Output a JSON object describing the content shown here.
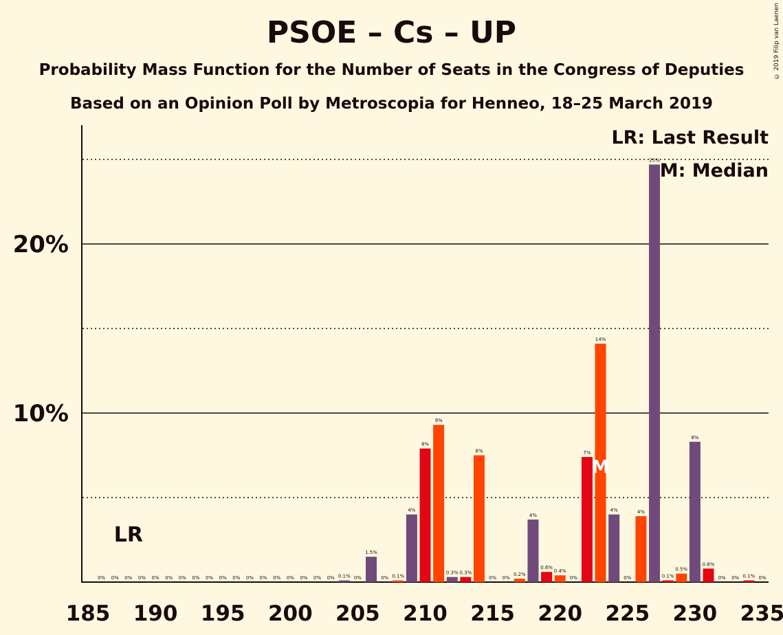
{
  "chart_data": {
    "type": "bar",
    "title": "PSOE – Cs – UP",
    "subtitle": "Probability Mass Function for the Number of Seats in the Congress of Deputies",
    "subtitle2": "Based on an Opinion Poll by Metroscopia for Henneo, 18–25 March 2019",
    "copyright": "© 2019 Filip van Laenen",
    "legend": [
      "LR: Last Result",
      "M: Median"
    ],
    "legend_placement": "top-right",
    "last_result_label": "LR",
    "last_result_seat": 188,
    "median_label": "M",
    "median_seat": 223,
    "xlim": [
      185,
      235
    ],
    "ylim": [
      0,
      27
    ],
    "x_ticks": [
      185,
      190,
      195,
      200,
      205,
      210,
      215,
      220,
      225,
      230,
      235
    ],
    "y_ticks": [
      {
        "value": 10,
        "label": "10%"
      },
      {
        "value": 20,
        "label": "20%"
      }
    ],
    "minor_gridlines": [
      5,
      15,
      25
    ],
    "colors": {
      "purple": "#6F4A7A",
      "red": "#E30613",
      "orange": "#FF4500",
      "text": "#1a0a0a",
      "background": "#FFF8E1"
    },
    "bars": [
      {
        "x": 186,
        "value": 0,
        "label": "0%",
        "color": "purple"
      },
      {
        "x": 187,
        "value": 0,
        "label": "0%",
        "color": "red"
      },
      {
        "x": 188,
        "value": 0,
        "label": "0%",
        "color": "orange"
      },
      {
        "x": 189,
        "value": 0,
        "label": "0%",
        "color": "purple"
      },
      {
        "x": 190,
        "value": 0,
        "label": "0%",
        "color": "red"
      },
      {
        "x": 191,
        "value": 0,
        "label": "0%",
        "color": "orange"
      },
      {
        "x": 192,
        "value": 0,
        "label": "0%",
        "color": "purple"
      },
      {
        "x": 193,
        "value": 0,
        "label": "0%",
        "color": "red"
      },
      {
        "x": 194,
        "value": 0,
        "label": "0%",
        "color": "orange"
      },
      {
        "x": 195,
        "value": 0,
        "label": "0%",
        "color": "purple"
      },
      {
        "x": 196,
        "value": 0,
        "label": "0%",
        "color": "red"
      },
      {
        "x": 197,
        "value": 0,
        "label": "0%",
        "color": "orange"
      },
      {
        "x": 198,
        "value": 0,
        "label": "0%",
        "color": "purple"
      },
      {
        "x": 199,
        "value": 0,
        "label": "0%",
        "color": "red"
      },
      {
        "x": 200,
        "value": 0,
        "label": "0%",
        "color": "orange"
      },
      {
        "x": 201,
        "value": 0,
        "label": "0%",
        "color": "purple"
      },
      {
        "x": 202,
        "value": 0,
        "label": "0%",
        "color": "red"
      },
      {
        "x": 203,
        "value": 0,
        "label": "0%",
        "color": "orange"
      },
      {
        "x": 204,
        "value": 0.1,
        "label": "0.1%",
        "color": "purple"
      },
      {
        "x": 205,
        "value": 0,
        "label": "0%",
        "color": "red"
      },
      {
        "x": 206,
        "value": 1.5,
        "label": "1.5%",
        "color": "purple"
      },
      {
        "x": 207,
        "value": 0,
        "label": "0%",
        "color": "red"
      },
      {
        "x": 208,
        "value": 0.1,
        "label": "0.1%",
        "color": "orange"
      },
      {
        "x": 209,
        "value": 4,
        "label": "4%",
        "color": "purple"
      },
      {
        "x": 210,
        "value": 7.9,
        "label": "8%",
        "color": "red"
      },
      {
        "x": 211,
        "value": 9.3,
        "label": "9%",
        "color": "orange"
      },
      {
        "x": 212,
        "value": 0.3,
        "label": "0.3%",
        "color": "purple"
      },
      {
        "x": 213,
        "value": 0.3,
        "label": "0.3%",
        "color": "red"
      },
      {
        "x": 214,
        "value": 7.5,
        "label": "8%",
        "color": "orange"
      },
      {
        "x": 215,
        "value": 0,
        "label": "0%",
        "color": "purple"
      },
      {
        "x": 216,
        "value": 0,
        "label": "0%",
        "color": "red"
      },
      {
        "x": 217,
        "value": 0.2,
        "label": "0.2%",
        "color": "orange"
      },
      {
        "x": 218,
        "value": 3.7,
        "label": "4%",
        "color": "purple"
      },
      {
        "x": 219,
        "value": 0.6,
        "label": "0.6%",
        "color": "red"
      },
      {
        "x": 220,
        "value": 0.4,
        "label": "0.4%",
        "color": "orange"
      },
      {
        "x": 221,
        "value": 0,
        "label": "0%",
        "color": "purple"
      },
      {
        "x": 222,
        "value": 7.4,
        "label": "7%",
        "color": "red"
      },
      {
        "x": 223,
        "value": 14.1,
        "label": "14%",
        "color": "orange"
      },
      {
        "x": 224,
        "value": 4,
        "label": "4%",
        "color": "purple"
      },
      {
        "x": 225,
        "value": 0,
        "label": "0%",
        "color": "red"
      },
      {
        "x": 226,
        "value": 3.9,
        "label": "4%",
        "color": "orange"
      },
      {
        "x": 227,
        "value": 24.7,
        "label": "25%",
        "color": "purple"
      },
      {
        "x": 228,
        "value": 0.1,
        "label": "0.1%",
        "color": "red"
      },
      {
        "x": 229,
        "value": 0.5,
        "label": "0.5%",
        "color": "orange"
      },
      {
        "x": 230,
        "value": 8.3,
        "label": "8%",
        "color": "purple"
      },
      {
        "x": 231,
        "value": 0.8,
        "label": "0.8%",
        "color": "red"
      },
      {
        "x": 232,
        "value": 0,
        "label": "0%",
        "color": "orange"
      },
      {
        "x": 233,
        "value": 0,
        "label": "0%",
        "color": "purple"
      },
      {
        "x": 234,
        "value": 0.1,
        "label": "0.1%",
        "color": "red"
      },
      {
        "x": 235,
        "value": 0,
        "label": "0%",
        "color": "orange"
      }
    ]
  }
}
